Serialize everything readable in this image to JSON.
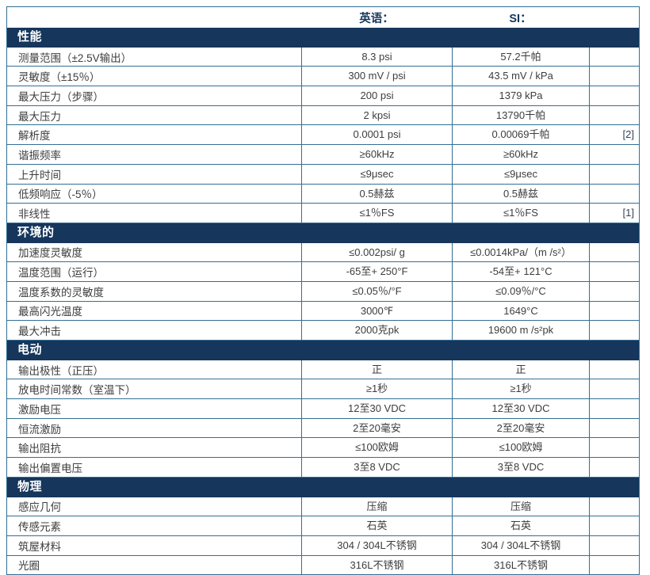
{
  "colors": {
    "section_bar": "#16365c",
    "grid_border": "#336f94",
    "header_text": "#16365c",
    "body_text": "#3d3d3d"
  },
  "table": {
    "header": {
      "label": "",
      "english": "英语：",
      "si": "SI：",
      "note": ""
    },
    "sections": [
      {
        "title": "性能",
        "rows": [
          {
            "label": "测量范围（±2.5V输出）",
            "english": "8.3 psi",
            "si": "57.2千帕",
            "note": ""
          },
          {
            "label": "灵敏度（±15％）",
            "english": "300 mV / psi",
            "si": "43.5 mV / kPa",
            "note": ""
          },
          {
            "label": "最大压力（步骤）",
            "english": "200 psi",
            "si": "1379 kPa",
            "note": ""
          },
          {
            "label": "最大压力",
            "english": "2 kpsi",
            "si": "13790千帕",
            "note": ""
          },
          {
            "label": "解析度",
            "english": "0.0001 psi",
            "si": "0.00069千帕",
            "note": "[2]"
          },
          {
            "label": "谐振频率",
            "english": "≥60kHz",
            "si": "≥60kHz",
            "note": ""
          },
          {
            "label": "上升时间",
            "english": "≤9μsec",
            "si": "≤9μsec",
            "note": ""
          },
          {
            "label": "低频响应（-5％）",
            "english": "0.5赫兹",
            "si": "0.5赫兹",
            "note": ""
          },
          {
            "label": "非线性",
            "english": "≤1％FS",
            "si": "≤1％FS",
            "note": "[1]"
          }
        ]
      },
      {
        "title": "环境的",
        "rows": [
          {
            "label": "加速度灵敏度",
            "english": "≤0.002psi/ g",
            "si": "≤0.0014kPa/（m /s²）",
            "note": ""
          },
          {
            "label": "温度范围（运行）",
            "english": "-65至+ 250°F",
            "si": "-54至+ 121°C",
            "note": ""
          },
          {
            "label": "温度系数的灵敏度",
            "english": "≤0.05％/°F",
            "si": "≤0.09％/°C",
            "note": ""
          },
          {
            "label": "最高闪光温度",
            "english": "3000℉",
            "si": "1649°C",
            "note": ""
          },
          {
            "label": "最大冲击",
            "english": "2000克pk",
            "si": "19600 m /s²pk",
            "note": ""
          }
        ]
      },
      {
        "title": "电动",
        "rows": [
          {
            "label": "输出极性（正压）",
            "english": "正",
            "si": "正",
            "note": ""
          },
          {
            "label": "放电时间常数（室温下）",
            "english": "≥1秒",
            "si": "≥1秒",
            "note": ""
          },
          {
            "label": "激励电压",
            "english": "12至30 VDC",
            "si": "12至30 VDC",
            "note": ""
          },
          {
            "label": "恒流激励",
            "english": "2至20毫安",
            "si": "2至20毫安",
            "note": ""
          },
          {
            "label": "输出阻抗",
            "english": "≤100欧姆",
            "si": "≤100欧姆",
            "note": ""
          },
          {
            "label": "输出偏置电压",
            "english": "3至8 VDC",
            "si": "3至8 VDC",
            "note": ""
          }
        ]
      },
      {
        "title": "物理",
        "rows": [
          {
            "label": "感应几何",
            "english": "压缩",
            "si": "压缩",
            "note": ""
          },
          {
            "label": "传感元素",
            "english": "石英",
            "si": "石英",
            "note": ""
          },
          {
            "label": "筑屋材料",
            "english": "304 / 304L不锈钢",
            "si": "304 / 304L不锈钢",
            "note": ""
          },
          {
            "label": "光圈",
            "english": "316L不锈钢",
            "si": "316L不锈钢",
            "note": ""
          }
        ]
      }
    ]
  }
}
